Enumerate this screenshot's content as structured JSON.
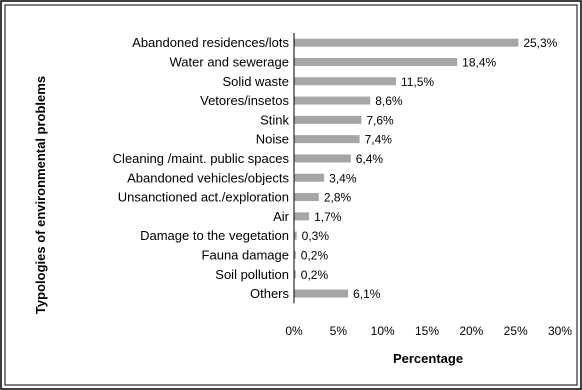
{
  "chart_data": {
    "type": "bar",
    "orientation": "horizontal",
    "ylabel": "Typologies of environmental problems",
    "xlabel": "Percentage",
    "xlim": [
      0,
      30
    ],
    "x_ticks": [
      "0%",
      "5%",
      "10%",
      "15%",
      "20%",
      "25%",
      "30%"
    ],
    "grid": false,
    "bar_color": "#a6a6a6",
    "categories": [
      "Abandoned residences/lots",
      "Water and sewerage",
      "Solid waste",
      "Vetores/insetos",
      "Stink",
      "Noise",
      "Cleaning /maint. public spaces",
      "Abandoned vehicles/objects",
      "Unsanctioned act./exploration",
      "Air",
      "Damage to the vegetation",
      "Fauna damage",
      "Soil pollution",
      "Others"
    ],
    "values": [
      25.3,
      18.4,
      11.5,
      8.6,
      7.6,
      7.4,
      6.4,
      3.4,
      2.8,
      1.7,
      0.3,
      0.2,
      0.2,
      6.1
    ],
    "value_labels": [
      "25,3%",
      "18,4%",
      "11,5%",
      "8,6%",
      "7,6%",
      "7,4%",
      "6,4%",
      "3,4%",
      "2,8%",
      "1,7%",
      "0,3%",
      "0,2%",
      "0,2%",
      "6,1%"
    ]
  }
}
